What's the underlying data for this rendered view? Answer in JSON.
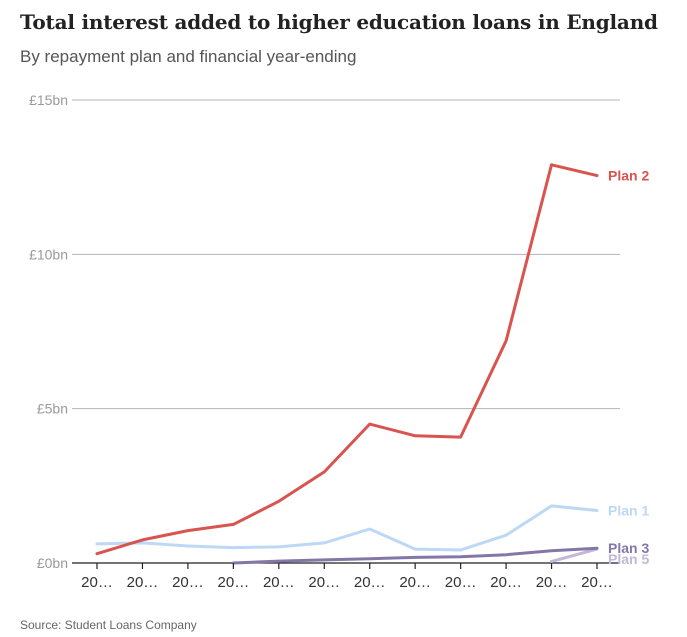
{
  "title": "Total interest added to higher education loans in England",
  "subtitle": "By repayment plan and financial year-ending",
  "source": "Source: Student Loans Company",
  "chart_data": {
    "type": "line",
    "title": "Total interest added to higher education loans in England",
    "subtitle": "By repayment plan and financial year-ending",
    "xlabel": "",
    "ylabel": "",
    "x": [
      "20…",
      "20…",
      "20…",
      "20…",
      "20…",
      "20…",
      "20…",
      "20…",
      "20…",
      "20…",
      "20…",
      "20…"
    ],
    "ylim": [
      0,
      15
    ],
    "yticks": [
      {
        "value": 15,
        "label": "£15bn"
      },
      {
        "value": 10,
        "label": "£10bn"
      },
      {
        "value": 5,
        "label": "£5bn"
      },
      {
        "value": 0,
        "label": "£0bn"
      }
    ],
    "grid": true,
    "series": [
      {
        "name": "Plan 2",
        "color": "#d9534f",
        "values": [
          0.3,
          0.75,
          1.05,
          1.25,
          2.0,
          2.95,
          4.5,
          4.12,
          4.08,
          7.2,
          12.9,
          12.55
        ]
      },
      {
        "name": "Plan 1",
        "color": "#bcd8f5",
        "values": [
          0.62,
          0.65,
          0.55,
          0.5,
          0.52,
          0.65,
          1.1,
          0.45,
          0.42,
          0.9,
          1.85,
          1.7
        ]
      },
      {
        "name": "Plan 3",
        "color": "#8477a8",
        "values": [
          null,
          null,
          null,
          0.0,
          0.06,
          0.1,
          0.14,
          0.18,
          0.2,
          0.27,
          0.4,
          0.48
        ]
      },
      {
        "name": "Plan 5",
        "color": "#c4b7d8",
        "values": [
          null,
          null,
          null,
          null,
          null,
          null,
          null,
          null,
          null,
          null,
          0.05,
          0.45
        ]
      }
    ]
  }
}
